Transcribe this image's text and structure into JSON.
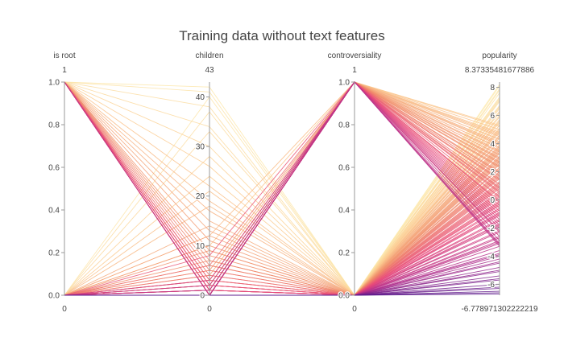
{
  "chart_data": {
    "type": "parallel_coordinates",
    "title": "Training data without text features",
    "colorscale": [
      "#5b1a8c",
      "#b42f8c",
      "#e8497a",
      "#f08c6a",
      "#fbc98f",
      "#fdecb0"
    ],
    "dimensions": [
      {
        "name": "is root",
        "range": [
          0,
          1
        ],
        "range_label_max": "1",
        "range_label_min": "0",
        "ticks": [
          {
            "value": 0,
            "label": "0.0"
          },
          {
            "value": 0.2,
            "label": "0.2"
          },
          {
            "value": 0.4,
            "label": "0.4"
          },
          {
            "value": 0.6,
            "label": "0.6"
          },
          {
            "value": 0.8,
            "label": "0.8"
          },
          {
            "value": 1,
            "label": "1.0"
          }
        ]
      },
      {
        "name": "children",
        "range": [
          0,
          43
        ],
        "range_label_max": "43",
        "range_label_min": "0",
        "ticks": [
          {
            "value": 0,
            "label": "0"
          },
          {
            "value": 10,
            "label": "10"
          },
          {
            "value": 20,
            "label": "20"
          },
          {
            "value": 30,
            "label": "30"
          },
          {
            "value": 40,
            "label": "40"
          }
        ]
      },
      {
        "name": "controversiality",
        "range": [
          0,
          1
        ],
        "range_label_max": "1",
        "range_label_min": "0",
        "ticks": [
          {
            "value": 0,
            "label": "0.0"
          },
          {
            "value": 0.2,
            "label": "0.2"
          },
          {
            "value": 0.4,
            "label": "0.4"
          },
          {
            "value": 0.6,
            "label": "0.6"
          },
          {
            "value": 0.8,
            "label": "0.8"
          },
          {
            "value": 1,
            "label": "1.0"
          }
        ]
      },
      {
        "name": "popularity",
        "range": [
          -6.778971302222219,
          8.37335481677886
        ],
        "range_label_max": "8.37335481677886",
        "range_label_min": "-6.778971302222219",
        "ticks": [
          {
            "value": -6,
            "label": "-6"
          },
          {
            "value": -4,
            "label": "-4"
          },
          {
            "value": -2,
            "label": "-2"
          },
          {
            "value": 0,
            "label": "0"
          },
          {
            "value": 2,
            "label": "2"
          },
          {
            "value": 4,
            "label": "4"
          },
          {
            "value": 6,
            "label": "6"
          },
          {
            "value": 8,
            "label": "8"
          }
        ]
      }
    ],
    "records": [
      [
        1,
        42,
        0,
        7.9
      ],
      [
        1,
        41,
        0,
        7.6
      ],
      [
        1,
        38,
        0,
        7.1
      ],
      [
        1,
        34,
        0,
        6.7
      ],
      [
        1,
        30,
        0,
        6.2
      ],
      [
        1,
        26,
        0,
        5.6
      ],
      [
        1,
        22,
        0,
        5.0
      ],
      [
        1,
        19,
        0,
        4.6
      ],
      [
        1,
        17,
        0,
        4.2
      ],
      [
        1,
        15,
        0,
        3.9
      ],
      [
        1,
        13,
        0,
        3.5
      ],
      [
        1,
        11,
        0,
        3.1
      ],
      [
        1,
        9,
        0,
        2.8
      ],
      [
        1,
        8,
        0,
        2.5
      ],
      [
        1,
        7,
        0,
        2.2
      ],
      [
        1,
        6,
        0,
        1.8
      ],
      [
        1,
        5,
        0,
        1.5
      ],
      [
        1,
        4,
        0,
        1.1
      ],
      [
        1,
        3,
        0,
        0.8
      ],
      [
        1,
        3,
        0,
        0.4
      ],
      [
        1,
        2,
        0,
        0.1
      ],
      [
        1,
        2,
        0,
        -0.3
      ],
      [
        1,
        1,
        0,
        -0.7
      ],
      [
        1,
        1,
        0,
        -1.1
      ],
      [
        1,
        0,
        0,
        -1.5
      ],
      [
        1,
        0,
        0,
        -1.9
      ],
      [
        1,
        0,
        0,
        -2.3
      ],
      [
        1,
        0,
        0,
        -2.7
      ],
      [
        1,
        0,
        0,
        8.1
      ],
      [
        1,
        0,
        0,
        7.3
      ],
      [
        1,
        0,
        0,
        6.5
      ],
      [
        1,
        0,
        0,
        5.9
      ],
      [
        1,
        1,
        0,
        5.3
      ],
      [
        1,
        1,
        0,
        4.8
      ],
      [
        1,
        2,
        0,
        4.4
      ],
      [
        1,
        0,
        0,
        3.7
      ],
      [
        1,
        0,
        0,
        3.3
      ],
      [
        1,
        1,
        0,
        2.9
      ],
      [
        1,
        0,
        0,
        2.0
      ],
      [
        1,
        0,
        0,
        1.3
      ],
      [
        1,
        0,
        0,
        0.6
      ],
      [
        1,
        1,
        0,
        -0.1
      ],
      [
        1,
        0,
        0,
        -0.9
      ],
      [
        1,
        0,
        0,
        -1.7
      ],
      [
        0,
        40,
        0,
        7.8
      ],
      [
        0,
        37,
        0,
        7.2
      ],
      [
        0,
        33,
        0,
        6.6
      ],
      [
        0,
        28,
        0,
        6.0
      ],
      [
        0,
        24,
        0,
        5.5
      ],
      [
        0,
        21,
        0,
        4.9
      ],
      [
        0,
        18,
        0,
        4.5
      ],
      [
        0,
        14,
        0,
        3.8
      ],
      [
        0,
        12,
        0,
        3.4
      ],
      [
        0,
        10,
        0,
        3.0
      ],
      [
        0,
        9,
        0,
        2.6
      ],
      [
        0,
        7,
        0,
        2.3
      ],
      [
        0,
        6,
        0,
        1.9
      ],
      [
        0,
        5,
        0,
        1.6
      ],
      [
        0,
        4,
        0,
        1.2
      ],
      [
        0,
        3,
        0,
        0.9
      ],
      [
        0,
        2,
        0,
        0.5
      ],
      [
        0,
        2,
        0,
        0.2
      ],
      [
        0,
        1,
        0,
        -0.2
      ],
      [
        0,
        1,
        0,
        -0.6
      ],
      [
        0,
        0,
        0,
        -1.0
      ],
      [
        0,
        0,
        0,
        -1.4
      ],
      [
        0,
        0,
        0,
        -1.8
      ],
      [
        0,
        0,
        0,
        -2.2
      ],
      [
        0,
        0,
        0,
        8.2
      ],
      [
        0,
        0,
        0,
        7.0
      ],
      [
        0,
        0,
        0,
        6.3
      ],
      [
        0,
        0,
        0,
        5.7
      ],
      [
        0,
        1,
        0,
        5.1
      ],
      [
        0,
        1,
        0,
        4.1
      ],
      [
        0,
        0,
        0,
        3.6
      ],
      [
        0,
        0,
        0,
        2.7
      ],
      [
        0,
        0,
        0,
        1.7
      ],
      [
        0,
        0,
        0,
        1.0
      ],
      [
        0,
        0,
        0,
        0.3
      ],
      [
        0,
        0,
        0,
        -0.4
      ],
      [
        0,
        0,
        0,
        -2.6
      ],
      [
        0,
        0,
        0,
        -3.0
      ],
      [
        0,
        0,
        0,
        -3.3
      ],
      [
        0,
        0,
        0,
        -3.6
      ],
      [
        0,
        0,
        0,
        -3.9
      ],
      [
        0,
        0,
        0,
        -4.2
      ],
      [
        0,
        0,
        0,
        -4.5
      ],
      [
        0,
        0,
        0,
        -4.8
      ],
      [
        0,
        0,
        0,
        -5.1
      ],
      [
        0,
        0,
        0,
        -5.4
      ],
      [
        0,
        0,
        0,
        -5.7
      ],
      [
        0,
        0,
        0,
        -6.0
      ],
      [
        0,
        0,
        0,
        -6.3
      ],
      [
        0,
        0,
        0,
        -6.6
      ],
      [
        0,
        0,
        0,
        -6.7
      ],
      [
        0,
        0,
        0,
        -3.1
      ],
      [
        0,
        0,
        0,
        -3.8
      ],
      [
        0,
        0,
        0,
        -4.4
      ],
      [
        0,
        0,
        0,
        -5.0
      ],
      [
        0,
        0,
        0,
        -5.6
      ],
      [
        0,
        0,
        0,
        -6.2
      ],
      [
        0,
        0,
        0,
        -6.5
      ],
      [
        0,
        0,
        0,
        -2.9
      ],
      [
        0,
        0,
        0,
        -4.0
      ],
      [
        0,
        2,
        1,
        5.3
      ],
      [
        0,
        1,
        1,
        5.0
      ],
      [
        0,
        3,
        1,
        4.6
      ],
      [
        0,
        1,
        1,
        4.3
      ],
      [
        0,
        0,
        1,
        4.0
      ],
      [
        0,
        4,
        1,
        3.7
      ],
      [
        0,
        2,
        1,
        3.5
      ],
      [
        0,
        0,
        1,
        3.2
      ],
      [
        0,
        5,
        1,
        2.9
      ],
      [
        0,
        1,
        1,
        2.6
      ],
      [
        0,
        0,
        1,
        2.3
      ],
      [
        0,
        3,
        1,
        2.0
      ],
      [
        0,
        0,
        1,
        1.7
      ],
      [
        0,
        2,
        1,
        1.4
      ],
      [
        0,
        6,
        1,
        1.1
      ],
      [
        0,
        0,
        1,
        0.8
      ],
      [
        0,
        1,
        1,
        0.5
      ],
      [
        0,
        0,
        1,
        0.2
      ],
      [
        0,
        8,
        1,
        -0.1
      ],
      [
        0,
        0,
        1,
        -0.4
      ],
      [
        0,
        0,
        1,
        -0.8
      ],
      [
        0,
        1,
        1,
        -1.2
      ],
      [
        0,
        0,
        1,
        -1.6
      ],
      [
        0,
        3,
        1,
        -2.0
      ],
      [
        0,
        0,
        1,
        -2.3
      ],
      [
        0,
        0,
        1,
        -2.6
      ],
      [
        0,
        2,
        1,
        -2.9
      ],
      [
        0,
        0,
        1,
        -3.1
      ],
      [
        0,
        0,
        1,
        -3.2
      ],
      [
        0,
        1,
        1,
        -3.3
      ],
      [
        0,
        0,
        1,
        4.8
      ],
      [
        0,
        0,
        1,
        4.5
      ],
      [
        0,
        0,
        1,
        3.9
      ],
      [
        0,
        0,
        1,
        3.0
      ],
      [
        0,
        0,
        1,
        2.4
      ],
      [
        0,
        0,
        1,
        1.5
      ],
      [
        0,
        0,
        1,
        0.6
      ],
      [
        0,
        0,
        1,
        -0.6
      ],
      [
        0,
        0,
        1,
        -1.4
      ],
      [
        0,
        0,
        1,
        -2.2
      ],
      [
        0,
        10,
        1,
        5.2
      ],
      [
        0,
        12,
        1,
        4.7
      ],
      [
        0,
        0,
        1,
        4.1
      ],
      [
        0,
        0,
        1,
        3.4
      ],
      [
        0,
        0,
        1,
        2.7
      ],
      [
        0,
        0,
        1,
        1.9
      ],
      [
        0,
        0,
        1,
        0.9
      ],
      [
        0,
        0,
        1,
        -0.2
      ],
      [
        0,
        0,
        1,
        -1.0
      ],
      [
        0,
        0,
        1,
        -1.8
      ]
    ]
  }
}
